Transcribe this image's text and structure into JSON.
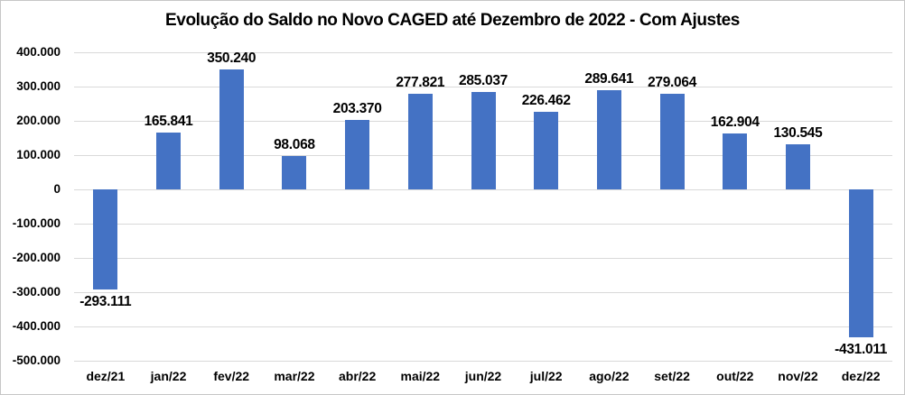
{
  "window": {
    "kind": "excel-style bar chart image"
  },
  "colors": {
    "bar_fill": "#4472C4",
    "gridline": "#D9D9D9",
    "text": "#000000",
    "frame_border": "#C6C6C6",
    "background": "#FFFFFF"
  },
  "chart_data": {
    "type": "bar",
    "title": "Evolução do Saldo no Novo CAGED até Dezembro de 2022 - Com Ajustes",
    "xlabel": "",
    "ylabel": "",
    "categories": [
      "dez/21",
      "jan/22",
      "fev/22",
      "mar/22",
      "abr/22",
      "mai/22",
      "jun/22",
      "jul/22",
      "ago/22",
      "set/22",
      "out/22",
      "nov/22",
      "dez/22"
    ],
    "values": [
      -293111,
      165841,
      350240,
      98068,
      203370,
      277821,
      285037,
      226462,
      289641,
      279064,
      162904,
      130545,
      -431011
    ],
    "data_labels": [
      "-293.111",
      "165.841",
      "350.240",
      "98.068",
      "203.370",
      "277.821",
      "285.037",
      "226.462",
      "289.641",
      "279.064",
      "162.904",
      "130.545",
      "-431.011"
    ],
    "ylim": [
      -500000,
      400000
    ],
    "ytick_step": 100000,
    "yticks": [
      400000,
      300000,
      200000,
      100000,
      0,
      -100000,
      -200000,
      -300000,
      -400000,
      -500000
    ],
    "ytick_labels": [
      "400.000",
      "300.000",
      "200.000",
      "100.000",
      "0",
      "-100.000",
      "-200.000",
      "-300.000",
      "-400.000",
      "-500.000"
    ],
    "grid": true,
    "legend": false,
    "data_label_position": "outside-end"
  }
}
